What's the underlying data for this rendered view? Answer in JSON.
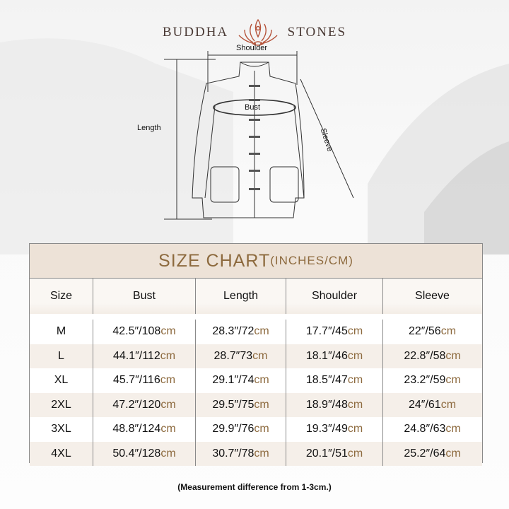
{
  "brand": {
    "left": "BUDDHA",
    "right": "STONES",
    "logo_icon": "lotus-meditation-icon",
    "logo_color": "#b5533a"
  },
  "diagram": {
    "shoulder": "Shoulder",
    "bust": "Bust",
    "length": "Length",
    "sleeve": "Sleeve"
  },
  "chart": {
    "title": "SIZE CHART",
    "title_units": "(INCHES/CM)",
    "headers": [
      "Size",
      "Bust",
      "Length",
      "Shoulder",
      "Sleeve"
    ],
    "unit_suffix": "cm",
    "rows": [
      {
        "size": "M",
        "bust": "42.5″/108",
        "length": "28.3″/72",
        "shoulder": "17.7″/45",
        "sleeve": "22″/56"
      },
      {
        "size": "L",
        "bust": "44.1″/112",
        "length": "28.7″73",
        "shoulder": "18.1″/46",
        "sleeve": "22.8″/58"
      },
      {
        "size": "XL",
        "bust": "45.7″/116",
        "length": "29.1″/74",
        "shoulder": "18.5″/47",
        "sleeve": "23.2″/59"
      },
      {
        "size": "2XL",
        "bust": "47.2″/120",
        "length": "29.5″/75",
        "shoulder": "18.9″/48",
        "sleeve": "24″/61"
      },
      {
        "size": "3XL",
        "bust": "48.8″/124",
        "length": "29.9″/76",
        "shoulder": "19.3″/49",
        "sleeve": "24.8″/63"
      },
      {
        "size": "4XL",
        "bust": "50.4″/128",
        "length": "30.7″/78",
        "shoulder": "20.1″/51",
        "sleeve": "25.2″/64"
      }
    ]
  },
  "note": "(Measurement difference from 1-3cm.)",
  "colors": {
    "accent": "#8d6a3e",
    "title_bg": "#ede2d7",
    "stripe": "#f5efe9"
  }
}
